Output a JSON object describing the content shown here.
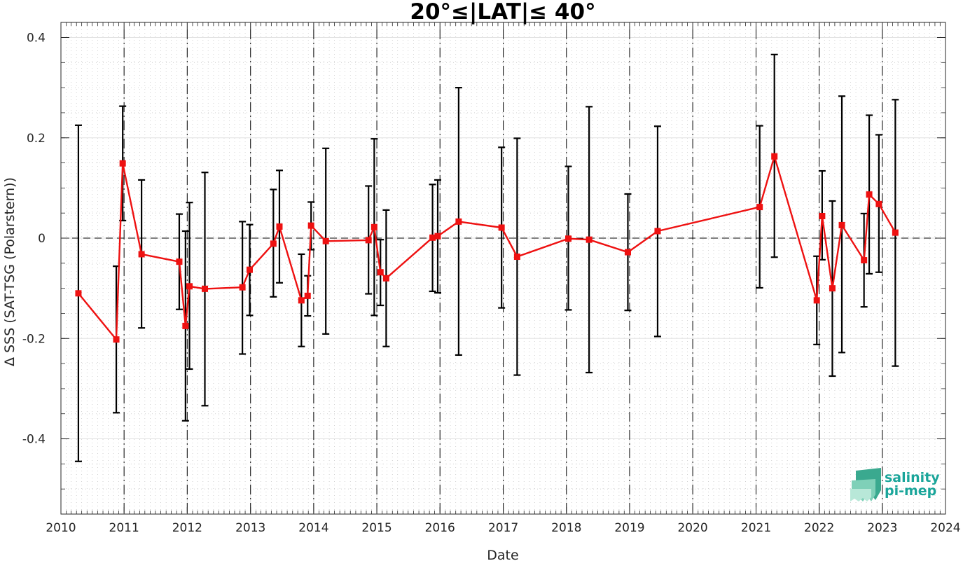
{
  "chart_data": {
    "type": "scatter",
    "title": "20°≤|LAT|≤ 40°",
    "xlabel": "Date",
    "ylabel": "Δ SSS (SAT-TSG (Polarstern))",
    "x_range": [
      "2010-01-01",
      "2024-01-01"
    ],
    "ylim": [
      -0.55,
      0.43
    ],
    "x_tick_labels": [
      "2010",
      "2011",
      "2012",
      "2013",
      "2014",
      "2015",
      "2016",
      "2017",
      "2018",
      "2019",
      "2020",
      "2021",
      "2022",
      "2023",
      "2024"
    ],
    "y_ticks": [
      -0.4,
      -0.2,
      0,
      0.2,
      0.4
    ],
    "y_tick_labels": [
      "-0.4",
      "-0.2",
      "0",
      "0.2",
      "0.4"
    ],
    "year_dividers": [
      "2011-01-01",
      "2012-01-01",
      "2013-01-01",
      "2014-01-01",
      "2015-01-01",
      "2016-01-01",
      "2017-01-01",
      "2018-01-01",
      "2019-01-01",
      "2020-01-01",
      "2021-01-01",
      "2022-01-01",
      "2023-01-01"
    ],
    "reference_line_y": 0,
    "grid": true,
    "legend": false,
    "line_color": "#ee1111",
    "marker_color": "#ee1111",
    "errorbar_color": "#000000",
    "series": [
      {
        "points": [
          {
            "date": "2010-04-12",
            "y": -0.11,
            "lo": -0.445,
            "hi": 0.225
          },
          {
            "date": "2010-11-17",
            "y": -0.202,
            "lo": -0.348,
            "hi": -0.056
          },
          {
            "date": "2010-12-24",
            "y": 0.149,
            "lo": 0.035,
            "hi": 0.263
          },
          {
            "date": "2011-04-12",
            "y": -0.032,
            "lo": -0.179,
            "hi": 0.116
          },
          {
            "date": "2011-11-16",
            "y": -0.047,
            "lo": -0.142,
            "hi": 0.048
          },
          {
            "date": "2011-12-22",
            "y": -0.175,
            "lo": -0.364,
            "hi": 0.014
          },
          {
            "date": "2012-01-14",
            "y": -0.096,
            "lo": -0.261,
            "hi": 0.071
          },
          {
            "date": "2012-04-12",
            "y": -0.101,
            "lo": -0.334,
            "hi": 0.131
          },
          {
            "date": "2012-11-15",
            "y": -0.098,
            "lo": -0.231,
            "hi": 0.033
          },
          {
            "date": "2012-12-27",
            "y": -0.063,
            "lo": -0.154,
            "hi": 0.027
          },
          {
            "date": "2013-05-13",
            "y": -0.011,
            "lo": -0.117,
            "hi": 0.097
          },
          {
            "date": "2013-06-17",
            "y": 0.023,
            "lo": -0.089,
            "hi": 0.135
          },
          {
            "date": "2013-10-22",
            "y": -0.124,
            "lo": -0.216,
            "hi": -0.032
          },
          {
            "date": "2013-11-27",
            "y": -0.115,
            "lo": -0.155,
            "hi": -0.075
          },
          {
            "date": "2013-12-17",
            "y": 0.025,
            "lo": -0.023,
            "hi": 0.072
          },
          {
            "date": "2014-03-12",
            "y": -0.006,
            "lo": -0.191,
            "hi": 0.179
          },
          {
            "date": "2014-11-14",
            "y": -0.004,
            "lo": -0.111,
            "hi": 0.104
          },
          {
            "date": "2014-12-17",
            "y": 0.022,
            "lo": -0.154,
            "hi": 0.198
          },
          {
            "date": "2015-01-22",
            "y": -0.068,
            "lo": -0.134,
            "hi": -0.003
          },
          {
            "date": "2015-02-24",
            "y": -0.08,
            "lo": -0.216,
            "hi": 0.056
          },
          {
            "date": "2015-11-19",
            "y": 0.001,
            "lo": -0.106,
            "hi": 0.107
          },
          {
            "date": "2015-12-19",
            "y": 0.004,
            "lo": -0.109,
            "hi": 0.116
          },
          {
            "date": "2016-04-18",
            "y": 0.033,
            "lo": -0.233,
            "hi": 0.3
          },
          {
            "date": "2016-12-22",
            "y": 0.021,
            "lo": -0.139,
            "hi": 0.181
          },
          {
            "date": "2017-03-22",
            "y": -0.037,
            "lo": -0.273,
            "hi": 0.199
          },
          {
            "date": "2018-01-12",
            "y": -0.001,
            "lo": -0.143,
            "hi": 0.143
          },
          {
            "date": "2018-05-12",
            "y": -0.003,
            "lo": -0.268,
            "hi": 0.262
          },
          {
            "date": "2018-12-22",
            "y": -0.028,
            "lo": -0.144,
            "hi": 0.088
          },
          {
            "date": "2019-06-12",
            "y": 0.014,
            "lo": -0.196,
            "hi": 0.223
          },
          {
            "date": "2021-01-22",
            "y": 0.062,
            "lo": -0.099,
            "hi": 0.224
          },
          {
            "date": "2021-04-17",
            "y": 0.163,
            "lo": -0.038,
            "hi": 0.366
          },
          {
            "date": "2021-12-18",
            "y": -0.124,
            "lo": -0.212,
            "hi": -0.036
          },
          {
            "date": "2022-01-18",
            "y": 0.044,
            "lo": -0.043,
            "hi": 0.134
          },
          {
            "date": "2022-03-18",
            "y": -0.1,
            "lo": -0.275,
            "hi": 0.074
          },
          {
            "date": "2022-05-12",
            "y": 0.026,
            "lo": -0.228,
            "hi": 0.283
          },
          {
            "date": "2022-09-17",
            "y": -0.044,
            "lo": -0.137,
            "hi": 0.049
          },
          {
            "date": "2022-10-17",
            "y": 0.087,
            "lo": -0.071,
            "hi": 0.245
          },
          {
            "date": "2022-12-12",
            "y": 0.068,
            "lo": -0.068,
            "hi": 0.206
          },
          {
            "date": "2023-03-17",
            "y": 0.011,
            "lo": -0.255,
            "hi": 0.276
          }
        ]
      }
    ]
  },
  "logo": {
    "line1": "salinity",
    "line2": "pi-mep",
    "text_color": "#1aa59a",
    "icon_colors": [
      "#3aa98f",
      "#7fd0b8",
      "#b8e8d8"
    ]
  }
}
